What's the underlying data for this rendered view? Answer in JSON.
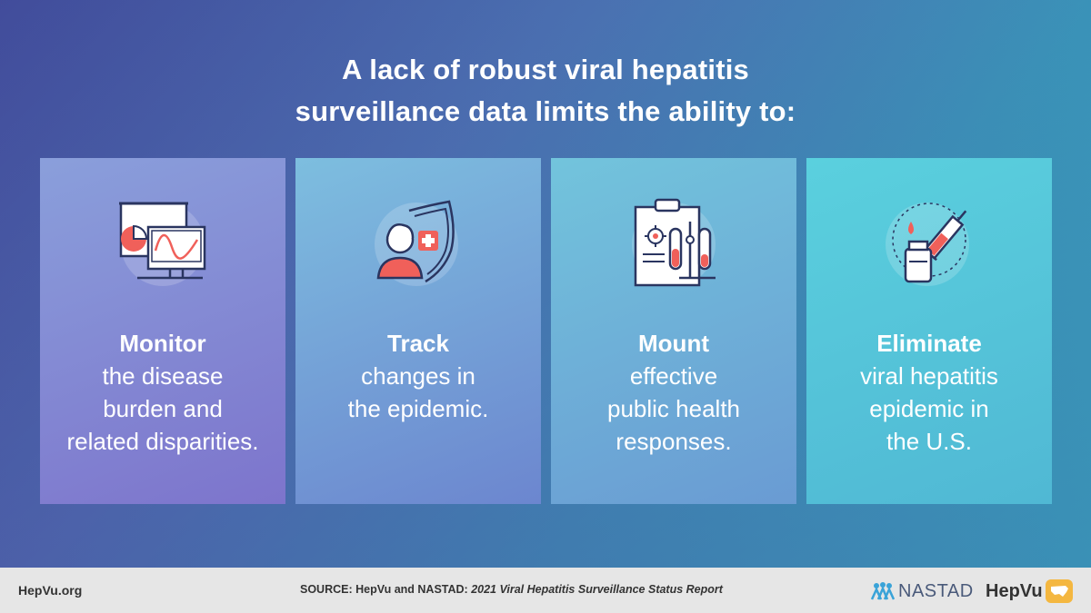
{
  "headline": {
    "line1": "A lack of robust viral hepatitis",
    "line2": "surveillance data limits the ability to:"
  },
  "cards": [
    {
      "title": "Monitor",
      "lines": [
        "the disease",
        "burden and",
        "related disparities."
      ],
      "icon": "monitor-chart-icon"
    },
    {
      "title": "Track",
      "lines": [
        "changes in",
        "the epidemic."
      ],
      "icon": "person-shield-icon"
    },
    {
      "title": "Mount",
      "lines": [
        "effective",
        "public health",
        "responses."
      ],
      "icon": "lab-clipboard-icon"
    },
    {
      "title": "Eliminate",
      "lines": [
        "viral hepatitis",
        "epidemic in",
        "the U.S."
      ],
      "icon": "syringe-vial-icon"
    }
  ],
  "footer": {
    "site": "HepVu.org",
    "source_prefix": "SOURCE: HepVu and NASTAD: ",
    "source_title": "2021 Viral Hepatitis Surveillance Status Report",
    "nastad_label": "NASTAD",
    "hepvu_label": "HepVu"
  },
  "colors": {
    "accent_red": "#f0605a",
    "icon_stroke": "#2a3560",
    "badge_yellow": "#f4b740"
  }
}
